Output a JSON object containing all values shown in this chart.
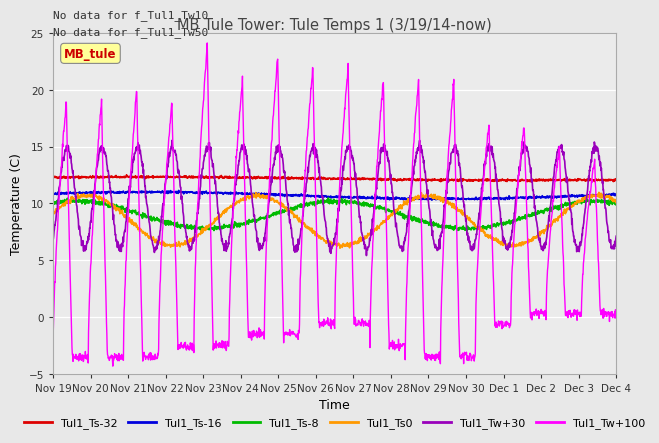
{
  "title": "MB Tule Tower: Tule Temps 1 (3/19/14-now)",
  "xlabel": "Time",
  "ylabel": "Temperature (C)",
  "note_line1": "No data for f_Tul1_Tw10",
  "note_line2": "No data for f_Tul1_Tw50",
  "legend_label": "MB_tule",
  "ylim": [
    -5,
    25
  ],
  "yticks": [
    -5,
    0,
    5,
    10,
    15,
    20,
    25
  ],
  "bg_color": "#e8e8e8",
  "plot_bg_color": "#ebebeb",
  "series": [
    {
      "name": "Tul1_Ts-32",
      "color": "#dd0000",
      "lw": 1.2
    },
    {
      "name": "Tul1_Ts-16",
      "color": "#0000dd",
      "lw": 1.2
    },
    {
      "name": "Tul1_Ts-8",
      "color": "#00bb00",
      "lw": 1.2
    },
    {
      "name": "Tul1_Ts0",
      "color": "#ff9900",
      "lw": 1.2
    },
    {
      "name": "Tul1_Tw+30",
      "color": "#9900bb",
      "lw": 1.2
    },
    {
      "name": "Tul1_Tw+100",
      "color": "#ff00ff",
      "lw": 1.0
    }
  ],
  "x_tick_labels": [
    "Nov 19",
    "Nov 20",
    "Nov 21",
    "Nov 22",
    "Nov 23",
    "Nov 24",
    "Nov 25",
    "Nov 26",
    "Nov 27",
    "Nov 28",
    "Nov 29",
    "Nov 30",
    "Dec 1",
    "Dec 2",
    "Dec 3",
    "Dec 4"
  ],
  "num_ticks": 16
}
